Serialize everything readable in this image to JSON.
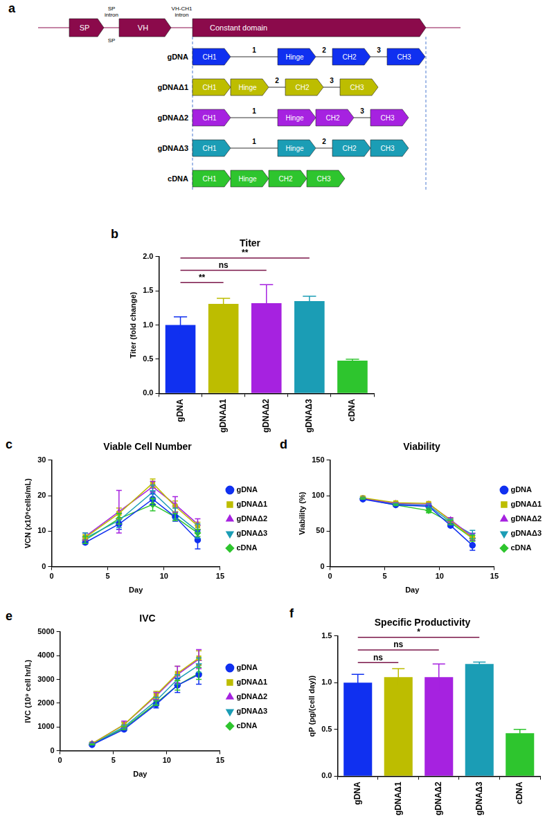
{
  "diagram": {
    "panel": "a",
    "header": [
      {
        "kind": "exon",
        "text": "SP"
      },
      {
        "kind": "intron",
        "text": "SP intron"
      },
      {
        "kind": "exon",
        "text": "VH"
      },
      {
        "kind": "intron",
        "text": "VH-CH1 intron"
      },
      {
        "kind": "exon",
        "text": "Constant domain"
      }
    ],
    "header_note": "SP",
    "header_color": "#8b0a4b",
    "rows": [
      {
        "name": "gDNA",
        "color": "#1030f0",
        "segments": [
          {
            "kind": "exon",
            "text": "CH1"
          },
          {
            "kind": "intron",
            "text": "1"
          },
          {
            "kind": "exon",
            "text": "Hinge"
          },
          {
            "kind": "intron",
            "text": "2"
          },
          {
            "kind": "exon",
            "text": "CH2"
          },
          {
            "kind": "intron",
            "text": "3"
          },
          {
            "kind": "exon",
            "text": "CH3"
          }
        ]
      },
      {
        "name": "gDNAΔ1",
        "color": "#bdbd00",
        "segments": [
          {
            "kind": "exon",
            "text": "CH1"
          },
          {
            "kind": "exon",
            "text": "Hinge"
          },
          {
            "kind": "intron",
            "text": "2"
          },
          {
            "kind": "exon",
            "text": "CH2"
          },
          {
            "kind": "intron",
            "text": "3"
          },
          {
            "kind": "exon",
            "text": "CH3"
          }
        ]
      },
      {
        "name": "gDNAΔ2",
        "color": "#a622e0",
        "segments": [
          {
            "kind": "exon",
            "text": "CH1"
          },
          {
            "kind": "intron",
            "text": "1"
          },
          {
            "kind": "exon",
            "text": "Hinge"
          },
          {
            "kind": "exon",
            "text": "CH2"
          },
          {
            "kind": "intron",
            "text": "3"
          },
          {
            "kind": "exon",
            "text": "CH3"
          }
        ]
      },
      {
        "name": "gDNAΔ3",
        "color": "#1b9db5",
        "segments": [
          {
            "kind": "exon",
            "text": "CH1"
          },
          {
            "kind": "intron",
            "text": "1"
          },
          {
            "kind": "exon",
            "text": "Hinge"
          },
          {
            "kind": "intron",
            "text": "2"
          },
          {
            "kind": "exon",
            "text": "CH2"
          },
          {
            "kind": "exon",
            "text": "CH3"
          }
        ]
      },
      {
        "name": "cDNA",
        "color": "#2ec52e",
        "segments": [
          {
            "kind": "exon",
            "text": "CH1"
          },
          {
            "kind": "exon",
            "text": "Hinge"
          },
          {
            "kind": "exon",
            "text": "CH2"
          },
          {
            "kind": "exon",
            "text": "CH3"
          }
        ]
      }
    ]
  },
  "chart_data": [
    {
      "panel": "b",
      "type": "bar",
      "title": "Titer",
      "y_label": "Titer (fold change)",
      "categories": [
        "gDNA",
        "gDNAΔ1",
        "gDNAΔ2",
        "gDNAΔ3",
        "cDNA"
      ],
      "values": [
        1.0,
        1.31,
        1.32,
        1.35,
        0.48
      ],
      "errors": [
        0.12,
        0.08,
        0.27,
        0.07,
        0.02
      ],
      "colors": [
        "#1030f0",
        "#bdbd00",
        "#a622e0",
        "#1b9db5",
        "#2ec52e"
      ],
      "ylim": [
        0,
        2.0
      ],
      "yticks": [
        {
          "value": 0,
          "label": "0.0"
        },
        0.5,
        {
          "value": 1,
          "label": "1.0"
        },
        1.5,
        {
          "value": 2,
          "label": "2.0"
        }
      ],
      "grid": false,
      "annotations": [
        {
          "from": "gDNA",
          "to": "gDNAΔ1",
          "text": "**"
        },
        {
          "from": "gDNA",
          "to": "gDNAΔ2",
          "text": "ns"
        },
        {
          "from": "gDNA",
          "to": "gDNAΔ3",
          "text": "**"
        }
      ]
    },
    {
      "panel": "c",
      "type": "line",
      "title": "Viable Cell Number",
      "x_label": "Day",
      "y_label": "VCN (x10⁶cells/mL)",
      "x": [
        3,
        6,
        9,
        11,
        13
      ],
      "xlim": [
        0,
        15
      ],
      "xticks": [
        0,
        5,
        10,
        15
      ],
      "ylim": [
        0,
        30
      ],
      "yticks": [
        0,
        10,
        20,
        30
      ],
      "grid": false,
      "legend": "right",
      "series": [
        {
          "name": "gDNA",
          "color": "#1030f0",
          "marker": "circle",
          "values": [
            6.8,
            12,
            19,
            14,
            7.5
          ],
          "errors": [
            0.5,
            1.5,
            1.5,
            1.2,
            2.5
          ]
        },
        {
          "name": "gDNAΔ1",
          "color": "#bdbd00",
          "marker": "square",
          "values": [
            8.2,
            15,
            23.5,
            17,
            11.5
          ],
          "errors": [
            0.8,
            1.5,
            1.2,
            1.5,
            1
          ]
        },
        {
          "name": "gDNAΔ2",
          "color": "#a622e0",
          "marker": "triangle",
          "values": [
            8.5,
            15.5,
            22.5,
            17.5,
            12
          ],
          "errors": [
            1,
            6,
            1.5,
            2.2,
            1.5
          ]
        },
        {
          "name": "gDNAΔ3",
          "color": "#1b9db5",
          "marker": "triangle-down",
          "values": [
            8,
            13,
            21,
            15,
            10
          ],
          "errors": [
            1.5,
            2,
            2,
            1.5,
            2
          ]
        },
        {
          "name": "cDNA",
          "color": "#2ec52e",
          "marker": "diamond",
          "values": [
            7.5,
            13.5,
            17.5,
            14,
            9.5
          ],
          "errors": [
            1,
            1.5,
            1.8,
            1,
            1
          ]
        }
      ]
    },
    {
      "panel": "d",
      "type": "line",
      "title": "Viability",
      "x_label": "Day",
      "y_label": "Viability (%)",
      "x": [
        3,
        6,
        9,
        11,
        13
      ],
      "xlim": [
        0,
        15
      ],
      "xticks": [
        0,
        5,
        10,
        15
      ],
      "ylim": [
        0,
        150
      ],
      "yticks": [
        0,
        50,
        100,
        150
      ],
      "grid": false,
      "legend": "right",
      "series": [
        {
          "name": "gDNA",
          "color": "#1030f0",
          "marker": "circle",
          "values": [
            95,
            87,
            85,
            58,
            30
          ],
          "errors": [
            1,
            1,
            1,
            2,
            7
          ]
        },
        {
          "name": "gDNAΔ1",
          "color": "#bdbd00",
          "marker": "square",
          "values": [
            97,
            90,
            89,
            65,
            40
          ],
          "errors": [
            1,
            1,
            1,
            3,
            4
          ]
        },
        {
          "name": "gDNAΔ2",
          "color": "#a622e0",
          "marker": "triangle",
          "values": [
            96,
            89,
            88,
            66,
            42
          ],
          "errors": [
            1,
            1,
            1,
            3,
            5
          ]
        },
        {
          "name": "gDNAΔ3",
          "color": "#1b9db5",
          "marker": "triangle-down",
          "values": [
            96,
            88,
            86,
            63,
            45
          ],
          "errors": [
            1,
            1,
            2,
            4,
            6
          ]
        },
        {
          "name": "cDNA",
          "color": "#2ec52e",
          "marker": "diamond",
          "values": [
            96,
            87,
            79,
            62,
            40
          ],
          "errors": [
            1,
            1,
            3,
            3,
            4
          ]
        }
      ]
    },
    {
      "panel": "e",
      "type": "line",
      "title": "IVC",
      "x_label": "Day",
      "y_label": "IVC (10⁹ cell hr/L)",
      "x": [
        3,
        6,
        9,
        11,
        13
      ],
      "xlim": [
        0,
        15
      ],
      "xticks": [
        0,
        5,
        10,
        15
      ],
      "ylim": [
        0,
        5000
      ],
      "yticks": [
        0,
        1000,
        2000,
        3000,
        4000,
        5000
      ],
      "grid": false,
      "legend": "right",
      "series": [
        {
          "name": "gDNA",
          "color": "#1030f0",
          "marker": "circle",
          "values": [
            250,
            900,
            1950,
            2750,
            3200
          ],
          "errors": [
            20,
            60,
            150,
            300,
            400
          ]
        },
        {
          "name": "gDNAΔ1",
          "color": "#bdbd00",
          "marker": "square",
          "values": [
            300,
            1100,
            2350,
            3250,
            3900
          ],
          "errors": [
            20,
            100,
            150,
            300,
            300
          ]
        },
        {
          "name": "gDNAΔ2",
          "color": "#a622e0",
          "marker": "triangle",
          "values": [
            300,
            1100,
            2300,
            3200,
            3850
          ],
          "errors": [
            20,
            150,
            150,
            350,
            400
          ]
        },
        {
          "name": "gDNAΔ3",
          "color": "#1b9db5",
          "marker": "triangle-down",
          "values": [
            280,
            1000,
            2100,
            3000,
            3600
          ],
          "errors": [
            20,
            80,
            150,
            200,
            300
          ]
        },
        {
          "name": "cDNA",
          "color": "#2ec52e",
          "marker": "diamond",
          "values": [
            270,
            950,
            2000,
            2750,
            3250
          ],
          "errors": [
            20,
            60,
            100,
            200,
            250
          ]
        }
      ]
    },
    {
      "panel": "f",
      "type": "bar",
      "title": "Specific Productivity",
      "y_label": "qP (pg/(cell day))",
      "categories": [
        "gDNA",
        "gDNAΔ1",
        "gDNAΔ2",
        "gDNAΔ3",
        "cDNA"
      ],
      "values": [
        1.0,
        1.06,
        1.06,
        1.2,
        0.46
      ],
      "errors": [
        0.09,
        0.09,
        0.14,
        0.02,
        0.04
      ],
      "colors": [
        "#1030f0",
        "#bdbd00",
        "#a622e0",
        "#1b9db5",
        "#2ec52e"
      ],
      "ylim": [
        0,
        1.5
      ],
      "yticks": [
        {
          "value": 0,
          "label": "0.0"
        },
        0.5,
        {
          "value": 1,
          "label": "1.0"
        },
        1.5
      ],
      "grid": false,
      "annotations": [
        {
          "from": "gDNA",
          "to": "gDNAΔ1",
          "text": "ns"
        },
        {
          "from": "gDNA",
          "to": "gDNAΔ2",
          "text": "ns"
        },
        {
          "from": "gDNA",
          "to": "gDNAΔ3",
          "text": "*"
        }
      ]
    }
  ]
}
